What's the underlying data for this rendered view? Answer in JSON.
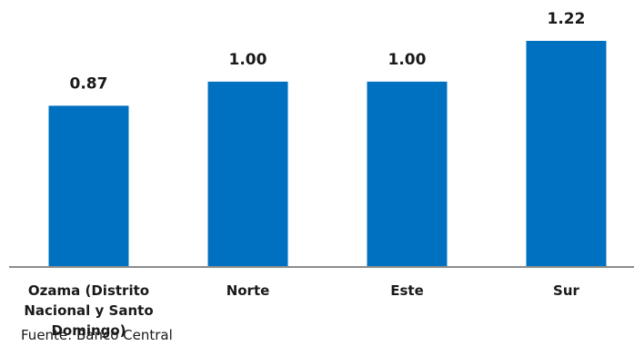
{
  "chart_data": {
    "type": "bar",
    "categories": [
      [
        "Ozama  (Distrito",
        "Nacional y Santo",
        "Domingo)"
      ],
      [
        "Norte"
      ],
      [
        "Este"
      ],
      [
        "Sur"
      ]
    ],
    "values": [
      0.87,
      1.0,
      1.0,
      1.22
    ],
    "value_labels": [
      "0.87",
      "1.00",
      "1.00",
      "1.22"
    ],
    "ylim": [
      0,
      1.22
    ],
    "grid": false,
    "bar_color": "#0070C0",
    "axis_color": "#8c8c8c"
  },
  "source_text": "Fuente: Banco Central"
}
